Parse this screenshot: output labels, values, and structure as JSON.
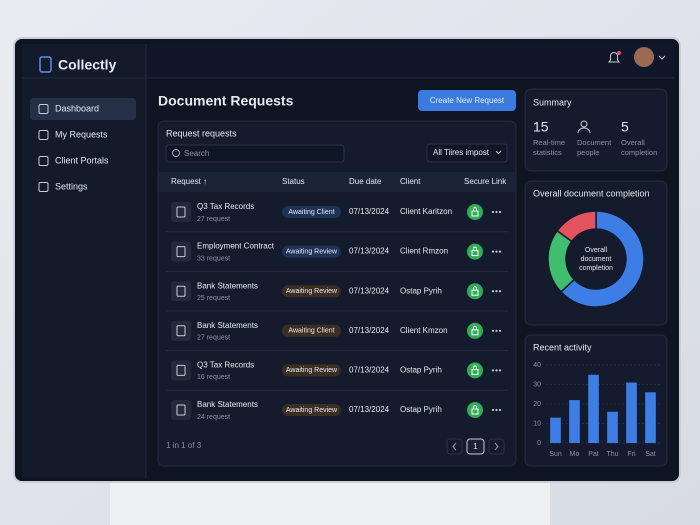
{
  "app": {
    "name": "Collectly",
    "nav": [
      {
        "label": "Dashboard",
        "active": true
      },
      {
        "label": "My Requests",
        "active": false
      },
      {
        "label": "Client Portals",
        "active": false
      },
      {
        "label": "Settings",
        "active": false
      }
    ]
  },
  "page": {
    "title": "Document Requests",
    "action": "Create New Request"
  },
  "requests": {
    "title": "Request requests",
    "search_placeholder": "Search",
    "filter": "All Tiires impost",
    "columns": [
      "Request ↑",
      "Status",
      "Due date",
      "Client",
      "Secure Link"
    ],
    "rows": [
      {
        "name": "Q3 Tax Records",
        "count": "27 request",
        "status": "Awaiting Client",
        "tone": "blue",
        "due": "07/13/2024",
        "client": "Client Karitzon"
      },
      {
        "name": "Employment Contract",
        "count": "33 request",
        "status": "Awaiting Review",
        "tone": "blue",
        "due": "07/13/2024",
        "client": "Client Rmzon"
      },
      {
        "name": "Bank Statements",
        "count": "25 request",
        "status": "Awaiting Review",
        "tone": "amber",
        "due": "07/13/2024",
        "client": "Ostap Pyrih"
      },
      {
        "name": "Bank Statements",
        "count": "27 request",
        "status": "Awaiting Client",
        "tone": "amber",
        "due": "07/13/2024",
        "client": "Client Kmzon"
      },
      {
        "name": "Q3 Tax Records",
        "count": "16 request",
        "status": "Awaiting Review",
        "tone": "amber",
        "due": "07/13/2024",
        "client": "Ostap Pyrih"
      },
      {
        "name": "Bank Statements",
        "count": "24 request",
        "status": "Awaiting Review",
        "tone": "amber",
        "due": "07/13/2024",
        "client": "Ostap Pyrih"
      }
    ],
    "pagination": {
      "summary": "1 in 1 of 3",
      "current": "1"
    }
  },
  "summary": {
    "title": "Summary",
    "stats": [
      {
        "value": 15,
        "label": [
          "Real-time",
          "statistics"
        ]
      },
      {
        "label": [
          "Document",
          "people"
        ]
      },
      {
        "value": 5,
        "label": [
          "Overall",
          "completion"
        ]
      }
    ]
  },
  "completion_chart": {
    "type": "pie",
    "title": "Overall document completion",
    "center_label": [
      "Overall",
      "document",
      "completion"
    ],
    "values": [
      63,
      22,
      15
    ],
    "colors": [
      "#3d7ee6",
      "#3fbf6e",
      "#e5545e"
    ]
  },
  "activity_chart": {
    "type": "bar",
    "title": "Recent activity",
    "categories": [
      "Sun",
      "Mo",
      "Pat",
      "Thu",
      "Fri",
      "Sat"
    ],
    "values": [
      13,
      22,
      35,
      16,
      31,
      26
    ],
    "color": "#3d7ee6",
    "ylim": [
      0,
      40
    ],
    "yticks": [
      0,
      10,
      20,
      30,
      40
    ],
    "grid": true
  }
}
